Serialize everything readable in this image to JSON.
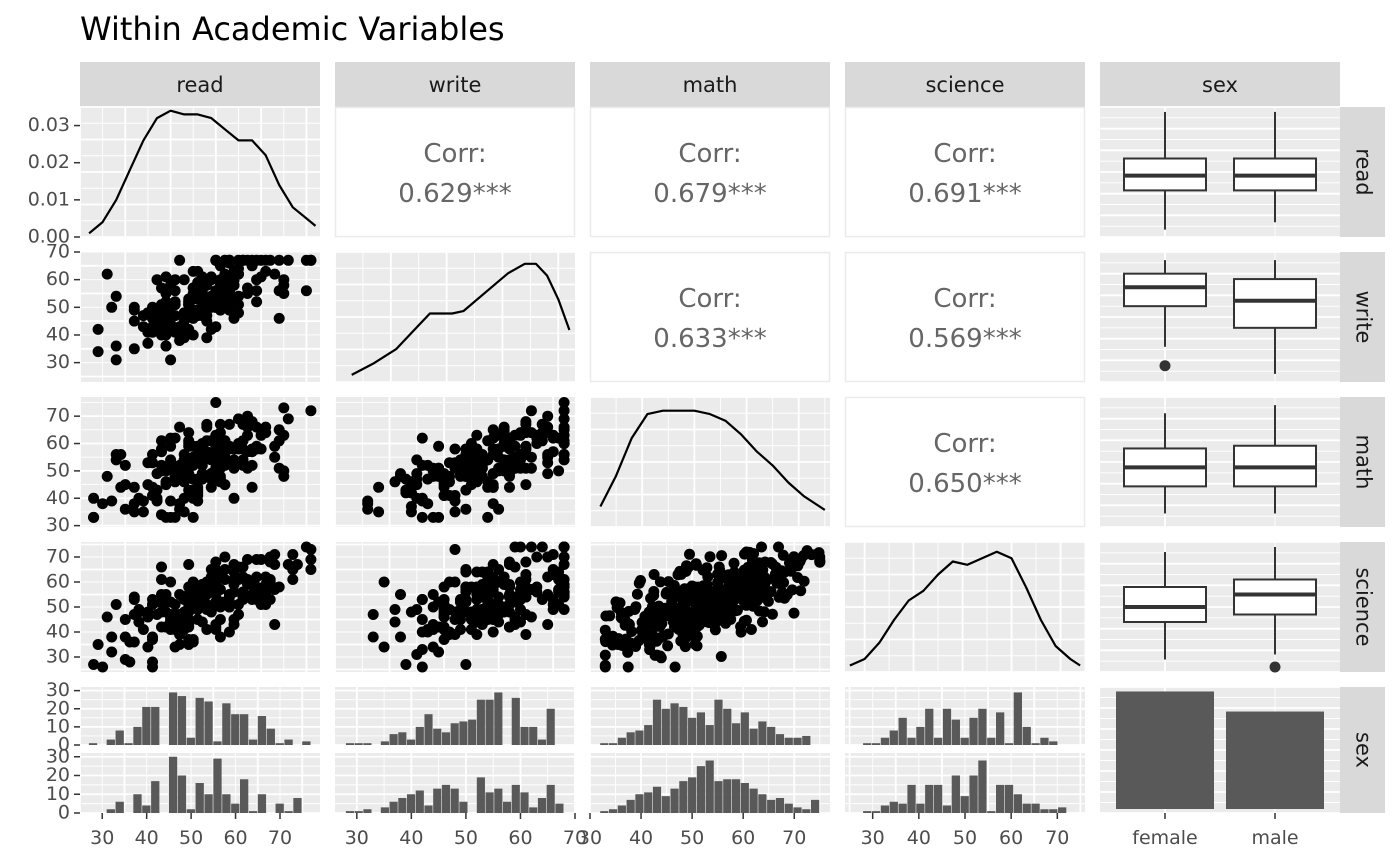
{
  "title": "Within Academic Variables",
  "variables": [
    "read",
    "write",
    "math",
    "science",
    "sex"
  ],
  "colors": {
    "panel_bg": "#ebebeb",
    "grid": "#ffffff",
    "strip_bg": "#d9d9d9",
    "ink": "#000000",
    "bar_fill": "#595959",
    "corr_text": "#666666",
    "tick_text": "#4d4d4d"
  },
  "chart_data": {
    "type": "scatter-matrix",
    "title": "Within Academic Variables",
    "panels": {
      "density_read": {
        "type": "line",
        "x": [
          27,
          30,
          33,
          36,
          39,
          42,
          45,
          48,
          51,
          54,
          57,
          60,
          63,
          66,
          69,
          72,
          75,
          77
        ],
        "y": [
          0.001,
          0.004,
          0.01,
          0.018,
          0.026,
          0.032,
          0.034,
          0.033,
          0.033,
          0.032,
          0.029,
          0.026,
          0.026,
          0.022,
          0.014,
          0.008,
          0.005,
          0.003
        ],
        "ylim": [
          0,
          0.035
        ],
        "xlim": [
          25,
          78
        ],
        "y_ticks": [
          "0.00",
          "0.01",
          "0.02",
          "0.03"
        ]
      },
      "density_write": {
        "type": "line",
        "x": [
          28,
          32,
          36,
          40,
          42,
          44,
          46,
          48,
          52,
          56,
          59,
          61,
          63,
          65,
          67
        ],
        "y": [
          0.003,
          0.008,
          0.014,
          0.024,
          0.029,
          0.029,
          0.029,
          0.03,
          0.038,
          0.046,
          0.05,
          0.05,
          0.045,
          0.035,
          0.022
        ],
        "ylim": [
          0,
          0.055
        ],
        "xlim": [
          25,
          68
        ]
      },
      "density_math": {
        "type": "line",
        "x": [
          32,
          35,
          38,
          41,
          44,
          47,
          50,
          53,
          56,
          59,
          62,
          65,
          68,
          71,
          74,
          75
        ],
        "y": [
          0.006,
          0.015,
          0.026,
          0.033,
          0.034,
          0.034,
          0.034,
          0.033,
          0.031,
          0.027,
          0.022,
          0.018,
          0.013,
          0.009,
          0.006,
          0.005
        ],
        "ylim": [
          0,
          0.038
        ],
        "xlim": [
          30,
          76
        ]
      },
      "density_science": {
        "type": "line",
        "x": [
          27,
          30,
          33,
          36,
          39,
          42,
          45,
          48,
          51,
          54,
          57,
          60,
          63,
          66,
          69,
          72,
          74
        ],
        "y": [
          0.002,
          0.004,
          0.009,
          0.016,
          0.022,
          0.025,
          0.03,
          0.034,
          0.033,
          0.035,
          0.037,
          0.035,
          0.026,
          0.016,
          0.008,
          0.004,
          0.002
        ],
        "ylim": [
          0,
          0.04
        ],
        "xlim": [
          26,
          75
        ]
      },
      "corr_read_write": {
        "label": "Corr:",
        "value": "0.629***"
      },
      "corr_read_math": {
        "label": "Corr:",
        "value": "0.679***"
      },
      "corr_read_science": {
        "label": "Corr:",
        "value": "0.691***"
      },
      "corr_write_math": {
        "label": "Corr:",
        "value": "0.633***"
      },
      "corr_write_science": {
        "label": "Corr:",
        "value": "0.569***"
      },
      "corr_math_science": {
        "label": "Corr:",
        "value": "0.650***"
      },
      "box_read": {
        "categories": [
          "female",
          "male"
        ],
        "ylim": [
          25,
          78
        ],
        "boxes": [
          {
            "min": 28,
            "q1": 44,
            "median": 50,
            "q3": 57,
            "max": 76
          },
          {
            "min": 31,
            "q1": 44,
            "median": 50,
            "q3": 57,
            "max": 76
          }
        ]
      },
      "box_write": {
        "categories": [
          "female",
          "male"
        ],
        "ylim": [
          22,
          70
        ],
        "boxes": [
          {
            "min": 35,
            "q1": 50,
            "median": 57,
            "q3": 62,
            "max": 67,
            "outliers": [
              28
            ]
          },
          {
            "min": 25,
            "q1": 42,
            "median": 52,
            "q3": 60,
            "max": 67
          }
        ]
      },
      "box_math": {
        "categories": [
          "female",
          "male"
        ],
        "ylim": [
          30,
          78
        ],
        "boxes": [
          {
            "min": 35,
            "q1": 45,
            "median": 52,
            "q3": 59,
            "max": 72
          },
          {
            "min": 35,
            "q1": 45,
            "median": 52,
            "q3": 60,
            "max": 75
          }
        ]
      },
      "box_science": {
        "categories": [
          "female",
          "male"
        ],
        "ylim": [
          24,
          76
        ],
        "boxes": [
          {
            "min": 29,
            "q1": 44,
            "median": 50,
            "q3": 58,
            "max": 72
          },
          {
            "min": 31,
            "q1": 47,
            "median": 55,
            "q3": 61,
            "max": 74,
            "outliers": [
              26
            ]
          }
        ]
      },
      "bar_sex": {
        "type": "bar",
        "categories": [
          "female",
          "male"
        ],
        "values": [
          109,
          91
        ],
        "ylim": [
          0,
          113
        ]
      },
      "hist_read": {
        "x_range": [
          27,
          77
        ],
        "x_ticks": [
          30,
          40,
          50,
          60,
          70
        ],
        "female": [
          1,
          0,
          3,
          8,
          1,
          10,
          21,
          21,
          0,
          29,
          27,
          4,
          26,
          24,
          2,
          23,
          17,
          17,
          3,
          16,
          9,
          1,
          3,
          0,
          2
        ],
        "male": [
          0,
          0,
          2,
          6,
          0,
          10,
          4,
          17,
          0,
          30,
          20,
          2,
          16,
          10,
          29,
          10,
          5,
          18,
          1,
          10,
          0,
          5,
          1,
          8,
          0
        ]
      },
      "hist_write": {
        "x_range": [
          28,
          68
        ],
        "x_ticks": [
          30,
          40,
          50,
          60,
          70
        ],
        "female": [
          1,
          1,
          1,
          0,
          2,
          6,
          7,
          3,
          10,
          17,
          9,
          7,
          12,
          13,
          14,
          25,
          25,
          29,
          0,
          26,
          10,
          10,
          3,
          20,
          0
        ],
        "male": [
          1,
          1,
          2,
          0,
          3,
          6,
          8,
          10,
          12,
          4,
          13,
          15,
          13,
          6,
          0,
          19,
          11,
          13,
          6,
          15,
          11,
          3,
          8,
          15,
          5
        ]
      },
      "hist_math": {
        "x_range": [
          32,
          75
        ],
        "x_ticks": [
          30,
          40,
          50,
          60,
          70
        ],
        "female": [
          1,
          1,
          4,
          7,
          8,
          11,
          25,
          20,
          23,
          21,
          15,
          18,
          11,
          25,
          20,
          12,
          18,
          9,
          13,
          10,
          6,
          4,
          4,
          5,
          0
        ],
        "male": [
          1,
          2,
          4,
          7,
          10,
          11,
          14,
          9,
          13,
          17,
          19,
          25,
          28,
          17,
          18,
          18,
          16,
          13,
          10,
          7,
          8,
          5,
          3,
          2,
          7
        ]
      },
      "hist_science": {
        "x_range": [
          26,
          74
        ],
        "x_ticks": [
          30,
          40,
          50,
          60,
          70
        ],
        "female": [
          0,
          1,
          1,
          4,
          8,
          15,
          4,
          10,
          20,
          4,
          20,
          14,
          4,
          15,
          20,
          4,
          18,
          1,
          29,
          10,
          1,
          4,
          2,
          0,
          0
        ],
        "male": [
          0,
          1,
          1,
          4,
          6,
          5,
          15,
          5,
          15,
          15,
          4,
          20,
          9,
          20,
          28,
          1,
          15,
          15,
          10,
          5,
          5,
          2,
          2,
          3,
          0
        ]
      }
    },
    "scatter_seed": 7
  }
}
